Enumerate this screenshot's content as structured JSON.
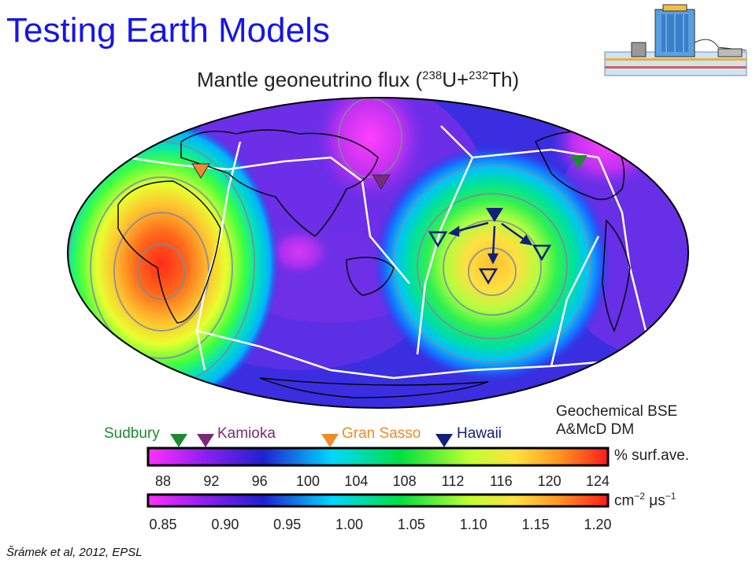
{
  "slide": {
    "title": "Testing Earth Models"
  },
  "citation": "Šrámek et al, 2012, EPSL",
  "map": {
    "title_main": "Mantle geoneutrino flux (",
    "title_iso1": "238",
    "title_u": "U+",
    "title_iso2": "232",
    "title_th": "Th)",
    "projection": "Mollweide"
  },
  "detectors": [
    {
      "name": "Sudbury",
      "color": "#1f8a32"
    },
    {
      "name": "Kamioka",
      "color": "#7a2a7a"
    },
    {
      "name": "Gran Sasso",
      "color": "#f08a2a"
    },
    {
      "name": "Hawaii",
      "color": "#12207a"
    }
  ],
  "models": {
    "line1": "Geochemical BSE",
    "line2": "A&McD DM"
  },
  "scale_percent": {
    "unit": "% surf.ave.",
    "ticks": [
      "88",
      "92",
      "96",
      "100",
      "104",
      "108",
      "112",
      "116",
      "120",
      "124"
    ]
  },
  "scale_flux": {
    "unit_base": "cm",
    "unit_exp1": "−2",
    "unit_mid": " μs",
    "unit_exp2": "−1",
    "ticks": [
      "0.85",
      "0.90",
      "0.95",
      "1.00",
      "1.05",
      "1.10",
      "1.15",
      "1.20"
    ]
  },
  "colors": {
    "title": "#1515e8",
    "ramp": [
      "#ff20ff",
      "#8a2be2",
      "#2020d0",
      "#00e0ff",
      "#00e040",
      "#ffff40",
      "#ff9020",
      "#ff2020"
    ]
  }
}
